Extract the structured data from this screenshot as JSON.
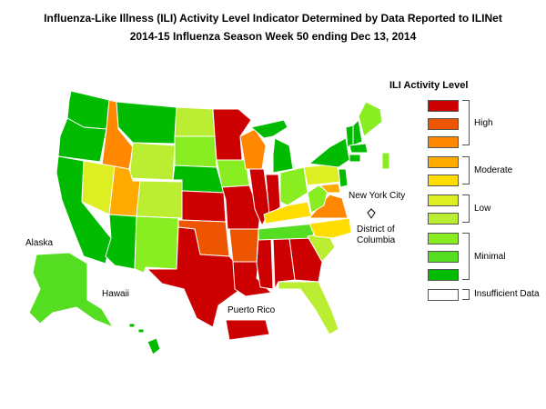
{
  "title_line1": "Influenza-Like Illness (ILI) Activity Level Indicator Determined by Data Reported to ILINet",
  "title_line2": "2014-15  Influenza Season Week  50 ending Dec 13, 2014",
  "legend": {
    "title": "ILI Activity Level",
    "levels": [
      {
        "level": 10,
        "color": "#cc0000"
      },
      {
        "level": 9,
        "color": "#ee5500"
      },
      {
        "level": 8,
        "color": "#ff8800"
      },
      {
        "level": 7,
        "color": "#ffaa00"
      },
      {
        "level": 6,
        "color": "#ffdd00"
      },
      {
        "level": 5,
        "color": "#ddee22"
      },
      {
        "level": 4,
        "color": "#bbee33"
      },
      {
        "level": 3,
        "color": "#88ee22"
      },
      {
        "level": 2,
        "color": "#55dd22"
      },
      {
        "level": 1,
        "color": "#00bb00"
      },
      {
        "level": 0,
        "color": "#ffffff"
      }
    ],
    "groups": {
      "high": "High",
      "moderate": "Moderate",
      "low": "Low",
      "minimal": "Minimal",
      "insufficient": "Insufficient Data"
    }
  },
  "labels": {
    "alaska": "Alaska",
    "hawaii": "Hawaii",
    "puerto_rico": "Puerto Rico",
    "new_york_city": "New York City",
    "dc_line1": "District of",
    "dc_line2": "Columbia"
  }
}
